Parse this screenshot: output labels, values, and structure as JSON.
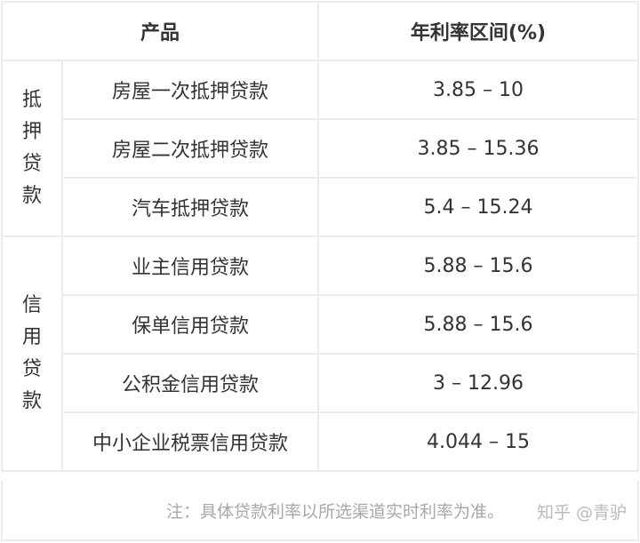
{
  "header": {
    "product": "产品",
    "rate": "年利率区间(%)"
  },
  "groups": [
    {
      "label_chars": [
        "抵",
        "押",
        "贷",
        "款"
      ],
      "rows": [
        {
          "product": "房屋一次抵押贷款",
          "rate": "3.85 – 10"
        },
        {
          "product": "房屋二次抵押贷款",
          "rate": "3.85 – 15.36"
        },
        {
          "product": "汽车抵押贷款",
          "rate": "5.4 – 15.24"
        }
      ]
    },
    {
      "label_chars": [
        "信",
        "用",
        "贷",
        "款"
      ],
      "rows": [
        {
          "product": "业主信用贷款",
          "rate": "5.88 – 15.6"
        },
        {
          "product": "保单信用贷款",
          "rate": "5.88 – 15.6"
        },
        {
          "product": "公积金信用贷款",
          "rate": "3 – 12.96"
        },
        {
          "product": "中小企业税票信用贷款",
          "rate": "4.044 – 15"
        }
      ]
    }
  ],
  "footer": {
    "note": "注：具体贷款利率以所选渠道实时利率为准。",
    "watermark": "知乎 @青驴"
  }
}
